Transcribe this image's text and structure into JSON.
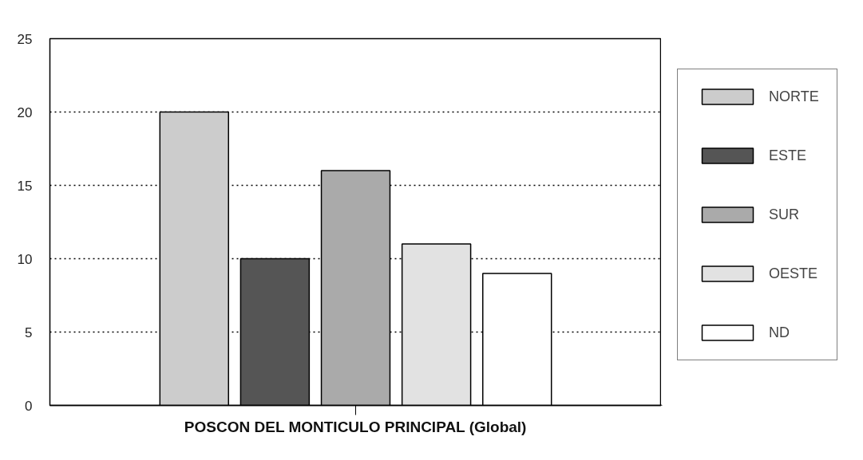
{
  "chart_data": {
    "type": "bar",
    "xlabel": "POSCON DEL MONTICULO PRINCIPAL (Global)",
    "categories": [
      null
    ],
    "series": [
      {
        "name": "NORTE",
        "color": "#cccccc",
        "values": [
          20
        ]
      },
      {
        "name": "ESTE",
        "color": "#555555",
        "values": [
          10
        ]
      },
      {
        "name": "SUR",
        "color": "#aaaaaa",
        "values": [
          16
        ]
      },
      {
        "name": "OESTE",
        "color": "#e2e2e2",
        "values": [
          11
        ]
      },
      {
        "name": "ND",
        "color": "#ffffff",
        "values": [
          9
        ]
      }
    ],
    "ylim": [
      0,
      25
    ],
    "yticks": [
      0,
      5,
      10,
      15,
      20,
      25
    ],
    "grid": "y",
    "legend": "right"
  }
}
